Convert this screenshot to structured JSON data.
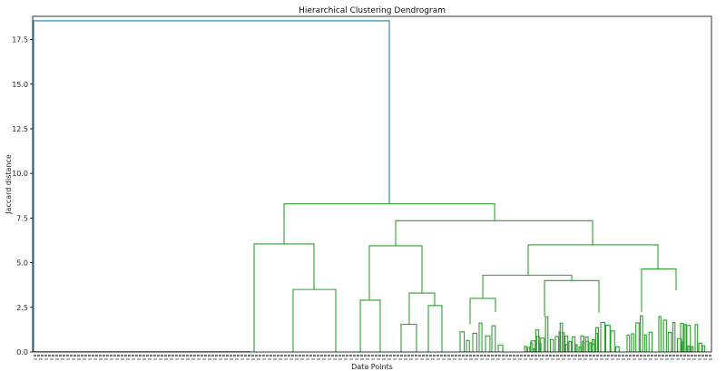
{
  "chart_data": {
    "type": "dendrogram",
    "title": "Hierarchical Clustering Dendrogram",
    "xlabel": "Data Points",
    "ylabel": "Jaccard distance",
    "ylim": [
      0,
      18.8
    ],
    "yticks": [
      0.0,
      2.5,
      5.0,
      7.5,
      10.0,
      12.5,
      15.0,
      17.5
    ],
    "ytick_labels": [
      "0.0",
      "2.5",
      "5.0",
      "7.5",
      "10.0",
      "12.5",
      "15.0",
      "17.5"
    ],
    "grid": false,
    "leaf_labels_note": "",
    "colors": {
      "root_link": "#1f77b4",
      "cluster_1": "#ff7f0e",
      "cluster_2": "#2ca02c",
      "axis": "#000000"
    },
    "root_merge_height": 18.55,
    "clusters": [
      {
        "color": "#ff7f0e",
        "leaf_fraction": [
          0.0,
          0.32
        ],
        "max_height": 0.02
      },
      {
        "color": "#2ca02c",
        "leaf_fraction": [
          0.32,
          1.0
        ],
        "top_merge_height": 8.3
      }
    ],
    "links": [
      {
        "cluster": "root",
        "left_height": 0.0,
        "right_height": 8.3,
        "height": 18.55
      },
      {
        "cluster": 2,
        "name": "top",
        "left_height": 6.05,
        "right_height": 7.35,
        "height": 8.3
      },
      {
        "cluster": 2,
        "name": "L",
        "left_height": 0.0,
        "right_height": 3.5,
        "height": 6.05
      },
      {
        "cluster": 2,
        "name": "L2",
        "left_height": 0.0,
        "right_height": 0.0,
        "height": 3.5
      },
      {
        "cluster": 2,
        "name": "R",
        "left_height": 5.95,
        "right_height": 6.0,
        "height": 7.35
      },
      {
        "cluster": 2,
        "name": "RL",
        "left_height": 2.9,
        "right_height": 3.3,
        "height": 5.95
      },
      {
        "cluster": 2,
        "name": "RL2",
        "left_height": 1.55,
        "right_height": 2.6,
        "height": 3.3
      },
      {
        "cluster": 2,
        "name": "RR",
        "left_height": 4.3,
        "right_height": 4.65,
        "height": 6.0
      },
      {
        "cluster": 2,
        "name": "RRa",
        "left_height": 3.0,
        "right_height": 4.0,
        "height": 4.3
      },
      {
        "cluster": 2,
        "name": "RRa2",
        "left_height": 2.0,
        "right_height": 2.2,
        "height": 4.0
      },
      {
        "cluster": 2,
        "name": "RRb",
        "left_height": 2.25,
        "right_height": 3.45,
        "height": 4.65
      }
    ]
  }
}
